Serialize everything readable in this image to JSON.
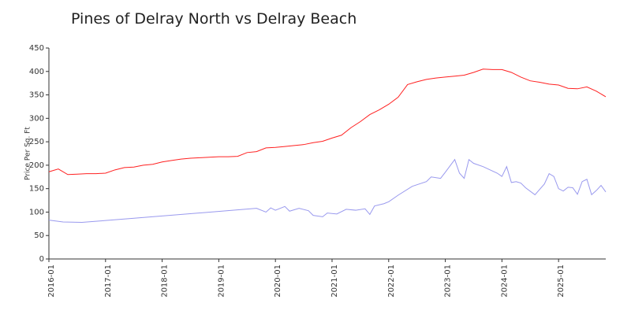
{
  "chart_data": {
    "type": "line",
    "title": "Pines of Delray North vs Delray Beach",
    "y_label": "Price Per Sq. Ft",
    "xlim": [
      "2016-01",
      "2025-11"
    ],
    "xticks": [
      "2016-01",
      "2017-01",
      "2018-01",
      "2019-01",
      "2020-01",
      "2021-01",
      "2022-01",
      "2023-01",
      "2024-01",
      "2025-01"
    ],
    "ylim": [
      0,
      450
    ],
    "yticks": [
      0,
      50,
      100,
      150,
      200,
      250,
      300,
      350,
      400,
      450
    ],
    "series": [
      {
        "color": "#ff2020",
        "x": [
          "2016-01",
          "2016-03",
          "2016-05",
          "2016-07",
          "2016-09",
          "2016-11",
          "2017-01",
          "2017-03",
          "2017-05",
          "2017-07",
          "2017-09",
          "2017-11",
          "2018-01",
          "2018-03",
          "2018-05",
          "2018-07",
          "2018-09",
          "2018-11",
          "2019-01",
          "2019-03",
          "2019-05",
          "2019-07",
          "2019-09",
          "2019-11",
          "2020-01",
          "2020-03",
          "2020-05",
          "2020-07",
          "2020-09",
          "2020-11",
          "2021-01",
          "2021-03",
          "2021-05",
          "2021-07",
          "2021-09",
          "2021-11",
          "2022-01",
          "2022-03",
          "2022-05",
          "2022-07",
          "2022-09",
          "2022-11",
          "2023-01",
          "2023-03",
          "2023-05",
          "2023-07",
          "2023-09",
          "2023-11",
          "2024-01",
          "2024-03",
          "2024-05",
          "2024-07",
          "2024-09",
          "2024-11",
          "2025-01",
          "2025-03",
          "2025-05",
          "2025-07",
          "2025-09",
          "2025-11"
        ],
        "values": [
          186,
          192,
          180,
          181,
          182,
          182,
          183,
          190,
          195,
          196,
          200,
          202,
          207,
          210,
          213,
          215,
          216,
          217,
          218,
          218,
          219,
          227,
          229,
          237,
          238,
          240,
          242,
          244,
          248,
          251,
          258,
          264,
          280,
          293,
          308,
          318,
          330,
          345,
          372,
          378,
          383,
          386,
          388,
          390,
          392,
          398,
          405,
          404,
          404,
          398,
          388,
          380,
          377,
          373,
          371,
          364,
          363,
          367,
          358,
          346
        ]
      },
      {
        "color": "#9999ee",
        "x": [
          "2016-01",
          "2016-04",
          "2016-08",
          "2017-01",
          "2017-06",
          "2019-09",
          "2019-11",
          "2019-12",
          "2020-01",
          "2020-03",
          "2020-04",
          "2020-06",
          "2020-08",
          "2020-09",
          "2020-11",
          "2020-12",
          "2021-02",
          "2021-04",
          "2021-06",
          "2021-08",
          "2021-09",
          "2021-10",
          "2021-12",
          "2022-01",
          "2022-03",
          "2022-06",
          "2022-09",
          "2022-10",
          "2022-12",
          "2023-01",
          "2023-03",
          "2023-04",
          "2023-05",
          "2023-06",
          "2023-07",
          "2023-09",
          "2023-12",
          "2024-01",
          "2024-02",
          "2024-03",
          "2024-04",
          "2024-05",
          "2024-06",
          "2024-08",
          "2024-10",
          "2024-11",
          "2024-12",
          "2025-01",
          "2025-02",
          "2025-03",
          "2025-04",
          "2025-05",
          "2025-06",
          "2025-07",
          "2025-08",
          "2025-09",
          "2025-10",
          "2025-11"
        ],
        "values": [
          83,
          79,
          78,
          82,
          86,
          108,
          100,
          109,
          104,
          112,
          102,
          108,
          103,
          93,
          90,
          98,
          96,
          106,
          104,
          107,
          95,
          113,
          118,
          122,
          136,
          155,
          165,
          175,
          172,
          185,
          212,
          183,
          172,
          212,
          204,
          197,
          183,
          176,
          197,
          163,
          165,
          162,
          152,
          137,
          160,
          182,
          176,
          150,
          145,
          153,
          152,
          138,
          165,
          170,
          137,
          146,
          157,
          143
        ]
      }
    ]
  }
}
